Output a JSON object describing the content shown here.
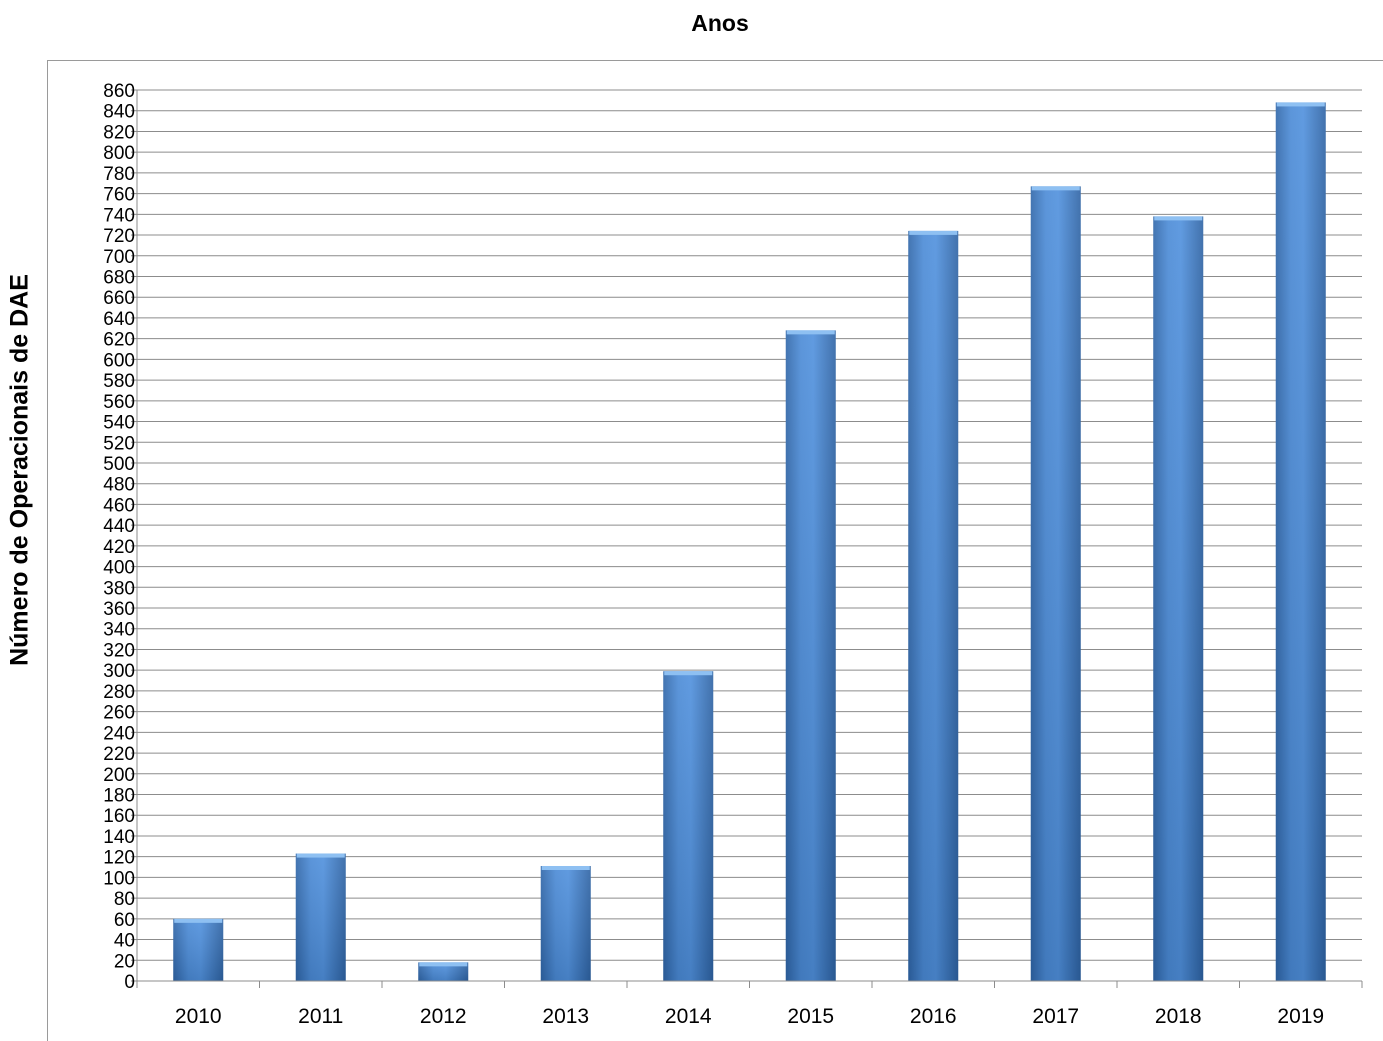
{
  "chart_data": {
    "type": "bar",
    "title": "Anos",
    "xlabel": "",
    "ylabel": "Número de Operacionais de DAE",
    "categories": [
      "2010",
      "2011",
      "2012",
      "2013",
      "2014",
      "2015",
      "2016",
      "2017",
      "2018",
      "2019"
    ],
    "values": [
      60,
      123,
      18,
      111,
      299,
      628,
      724,
      767,
      738,
      848
    ],
    "ylim": [
      0,
      860
    ],
    "ytick_step": 20,
    "grid": true,
    "legend": "none",
    "colors": {
      "bar_light": "#5b9be0",
      "bar_mid": "#3d7cc9",
      "bar_dark": "#2e65a8",
      "bar_top": "#8ec0f2",
      "grid": "#8c8c8c",
      "axis": "#8c8c8c"
    }
  }
}
